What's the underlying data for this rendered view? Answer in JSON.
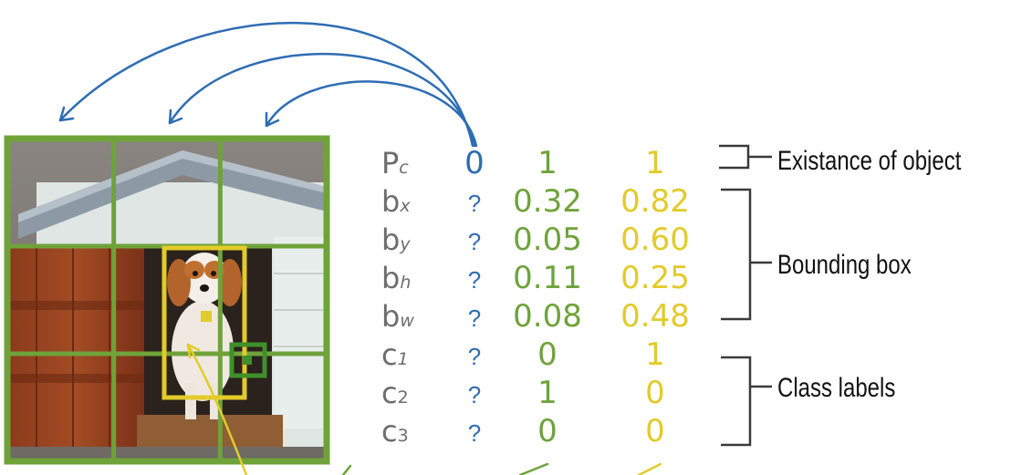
{
  "colors": {
    "blue": "#2e6db4",
    "green": "#6fa33a",
    "dark_green": "#3f8f2a",
    "yellow": "#e2cb2a",
    "label_gray": "#6d6d6d",
    "bracket_gray": "#3a3a3a",
    "annotation": "#111111"
  },
  "grid": {
    "rows": 3,
    "cols": 3
  },
  "rows": [
    {
      "base": "P",
      "sub": "c"
    },
    {
      "base": "b",
      "sub": "x"
    },
    {
      "base": "b",
      "sub": "y"
    },
    {
      "base": "b",
      "sub": "h"
    },
    {
      "base": "b",
      "sub": "w"
    },
    {
      "base": "c",
      "sub": "1"
    },
    {
      "base": "c",
      "sub": "2"
    },
    {
      "base": "c",
      "sub": "3"
    }
  ],
  "columns": [
    {
      "color": "blue",
      "values": [
        "0",
        "?",
        "?",
        "?",
        "?",
        "?",
        "?",
        "?"
      ]
    },
    {
      "color": "green",
      "values": [
        "1",
        "0.32",
        "0.05",
        "0.11",
        "0.08",
        "0",
        "1",
        "0"
      ]
    },
    {
      "color": "yellow",
      "values": [
        "1",
        "0.82",
        "0.60",
        "0.25",
        "0.48",
        "1",
        "0",
        "0"
      ]
    }
  ],
  "annotations": {
    "existence": "Existance of object",
    "bounding_box": "Bounding box",
    "class_labels": "Class labels"
  },
  "icons": [
    "dog-photo",
    "arrow-icon",
    "bracket-icon"
  ]
}
